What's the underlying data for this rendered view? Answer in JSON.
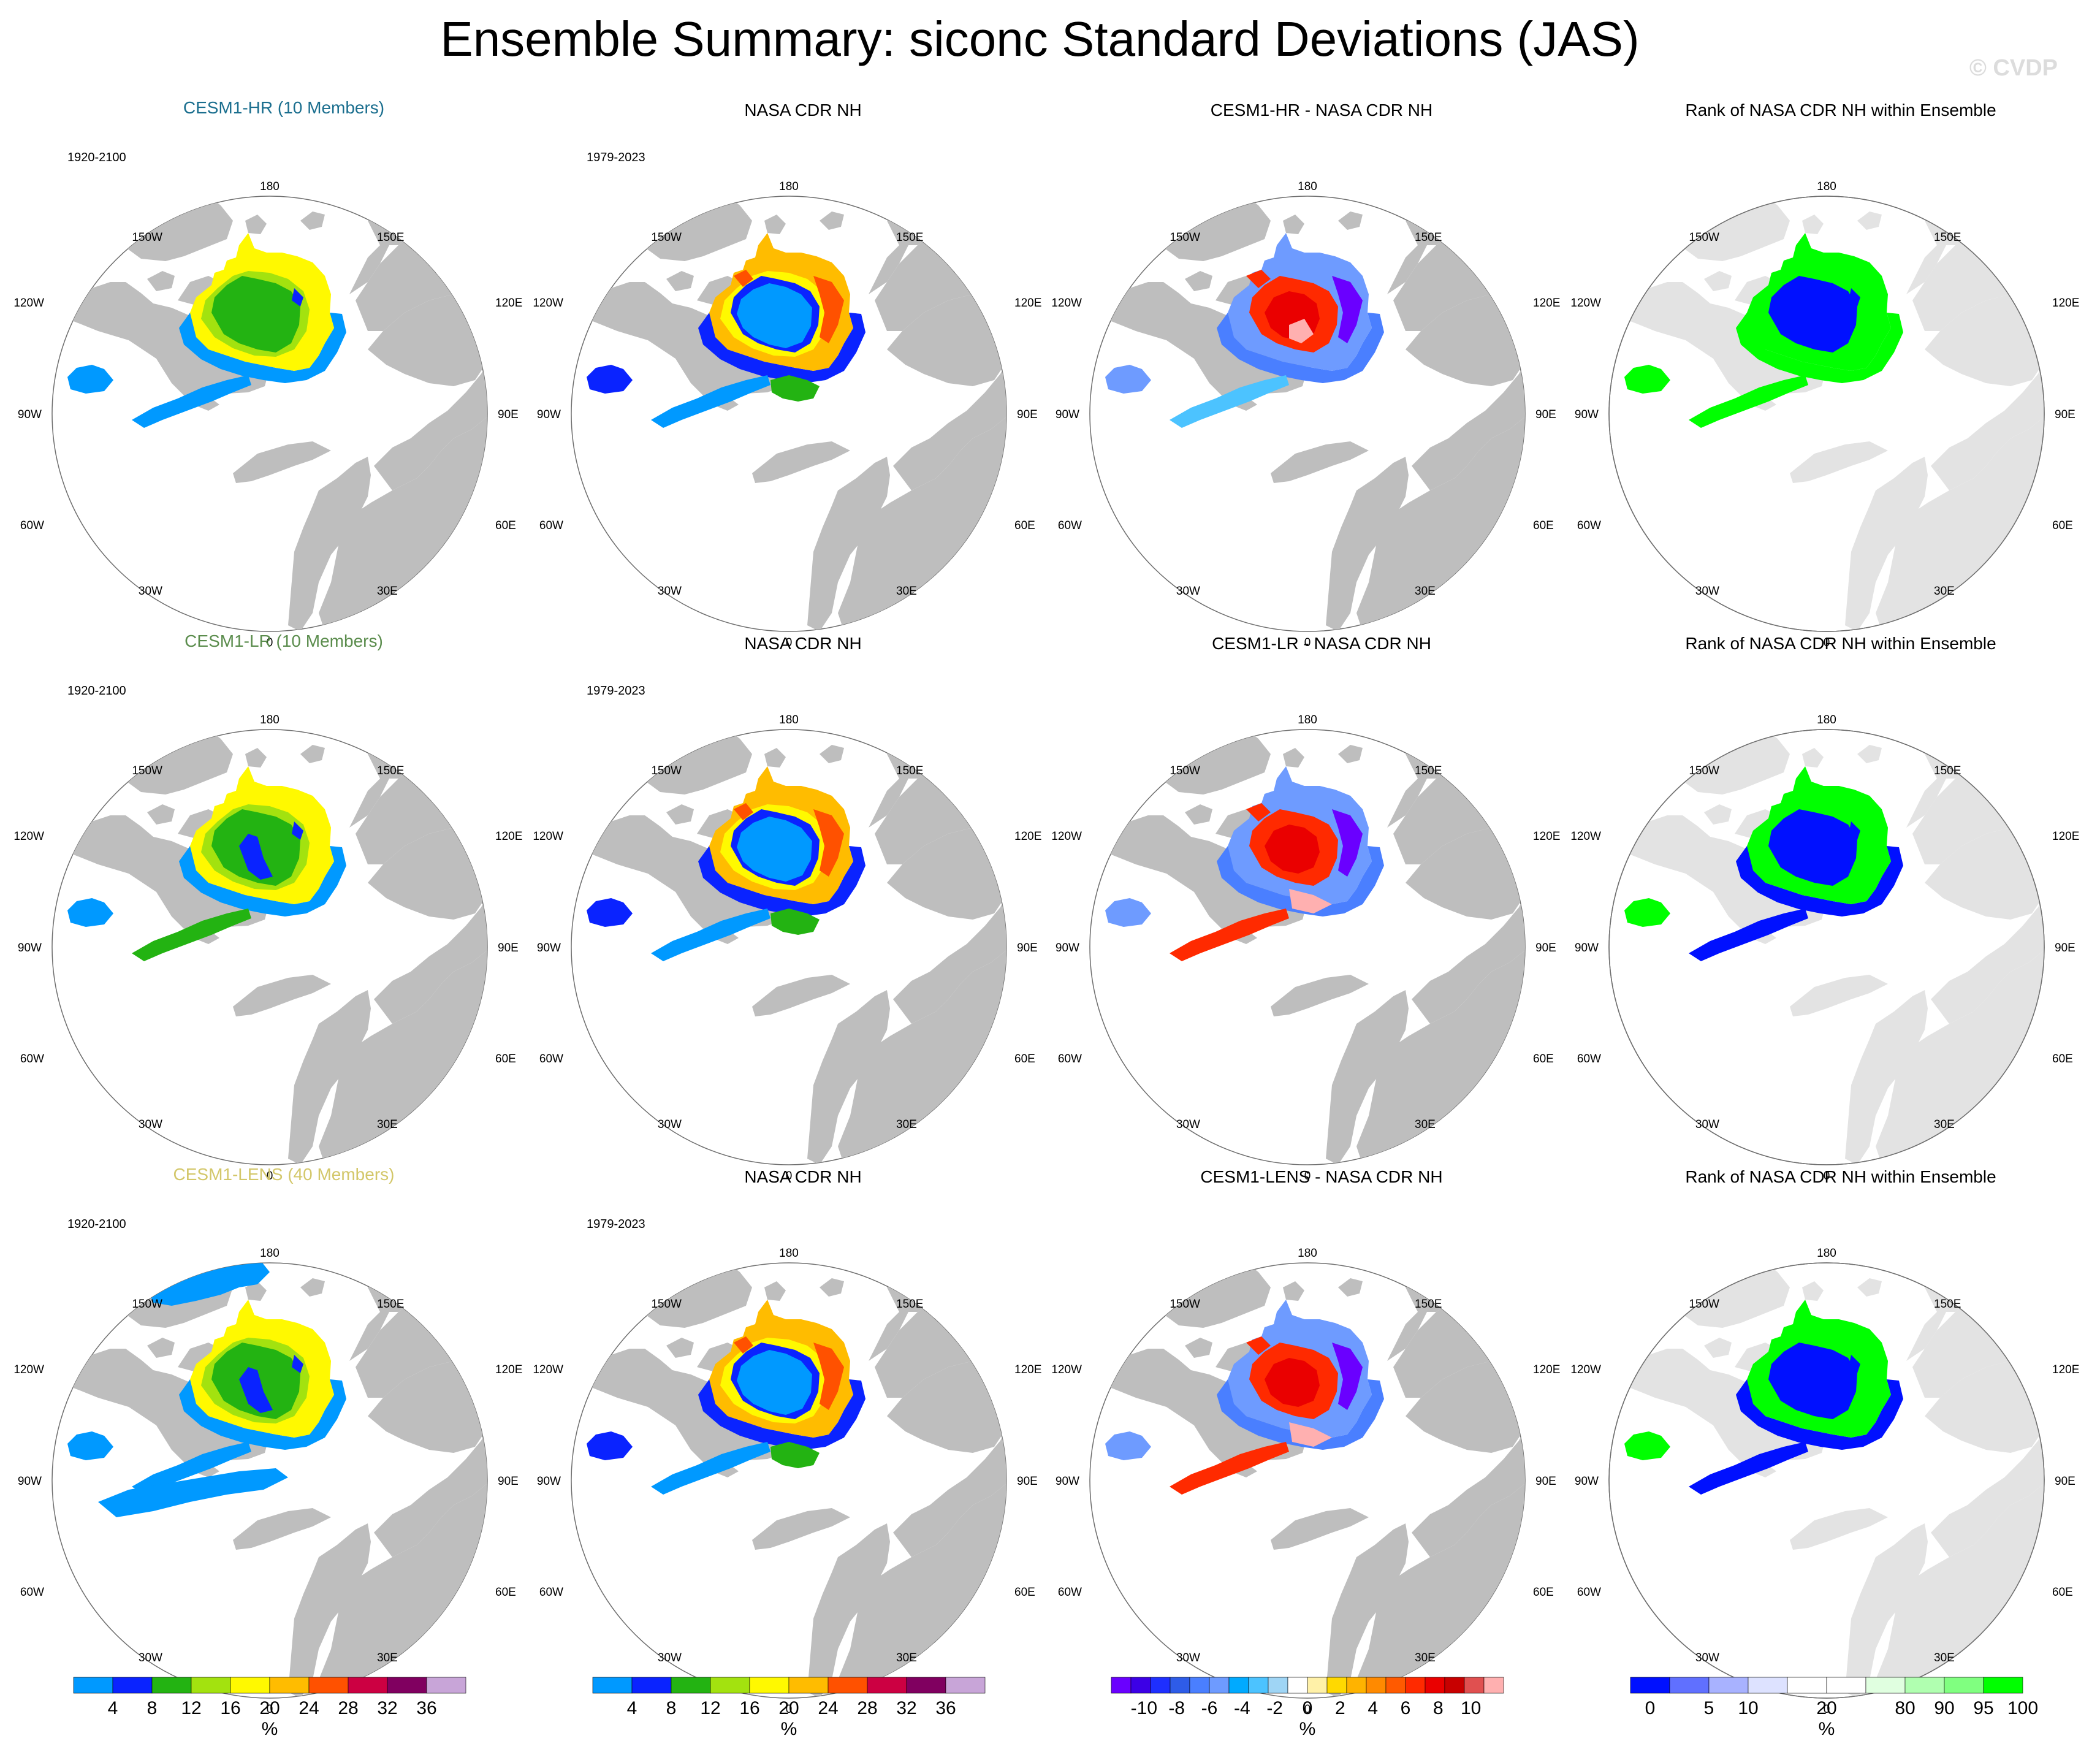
{
  "title": "Ensemble Summary: siconc Standard Deviations (JAS)",
  "watermark": "© CVDP",
  "map_labels": {
    "top": "180",
    "bottom": "0",
    "tl": "150W",
    "tr": "150E",
    "l1": "120W",
    "r1": "120E",
    "l2": "90W",
    "r2": "90E",
    "l3": "60W",
    "r3": "60E",
    "bl": "30W",
    "br": "30E"
  },
  "colors": {
    "ocean": "#ffffff",
    "land": "#bebebe",
    "land_rank": "#e3e3e3",
    "title_hr": "#1a6e8e",
    "title_lr": "#5a8c4c",
    "title_lens": "#d3c76a"
  },
  "rows": [
    {
      "ensemble": {
        "title": "CESM1-HR (10 Members)",
        "period": "1920-2100",
        "title_color": "#1a6e8e",
        "scheme": "hr"
      },
      "obs": {
        "title": "NASA CDR NH",
        "period": "1979-2023"
      },
      "diff": {
        "title": "CESM1-HR - NASA CDR NH"
      },
      "rank": {
        "title": "Rank of NASA CDR NH within Ensemble"
      }
    },
    {
      "ensemble": {
        "title": "CESM1-LR (10 Members)",
        "period": "1920-2100",
        "title_color": "#5a8c4c",
        "scheme": "lr"
      },
      "obs": {
        "title": "NASA CDR NH",
        "period": "1979-2023"
      },
      "diff": {
        "title": "CESM1-LR - NASA CDR NH"
      },
      "rank": {
        "title": "Rank of NASA CDR NH within Ensemble"
      }
    },
    {
      "ensemble": {
        "title": "CESM1-LENS (40 Members)",
        "period": "1920-2100",
        "title_color": "#d3c76a",
        "scheme": "lens"
      },
      "obs": {
        "title": "NASA CDR NH",
        "period": "1979-2023"
      },
      "diff": {
        "title": "CESM1-LENS - NASA CDR NH"
      },
      "rank": {
        "title": "Rank of NASA CDR NH within Ensemble"
      }
    }
  ],
  "colorbars": [
    {
      "unit": "%",
      "colors": [
        "#0099ff",
        "#0a23ff",
        "#23b312",
        "#a3e20f",
        "#fff900",
        "#ffbc00",
        "#ff5100",
        "#cc0042",
        "#800060",
        "#c8a5d8"
      ],
      "labels": [
        "4",
        "8",
        "12",
        "16",
        "20",
        "24",
        "28",
        "32",
        "36"
      ]
    },
    {
      "unit": "%",
      "colors": [
        "#0099ff",
        "#0a23ff",
        "#23b312",
        "#a3e20f",
        "#fff900",
        "#ffbc00",
        "#ff5100",
        "#cc0042",
        "#800060",
        "#c8a5d8"
      ],
      "labels": [
        "4",
        "8",
        "12",
        "16",
        "20",
        "24",
        "28",
        "32",
        "36"
      ]
    },
    {
      "unit": "%",
      "colors": [
        "#6a00ff",
        "#3c00e6",
        "#1e2fff",
        "#2e5ce8",
        "#4a7fff",
        "#6e9bff",
        "#00aaff",
        "#4cc3ff",
        "#9fd5f5",
        "#ffffff",
        "#fff1a8",
        "#ffd900",
        "#ffb300",
        "#ff8a00",
        "#ff5a00",
        "#ff2a00",
        "#ea0000",
        "#c80000",
        "#e05050",
        "#ffb0b0"
      ],
      "labels": [
        "-10",
        "-8",
        "-6",
        "-4",
        "-2",
        "0",
        "2",
        "4",
        "6",
        "8",
        "10"
      ]
    },
    {
      "unit": "%",
      "colors": [
        "#0010ff",
        "#6070ff",
        "#a8b2ff",
        "#dde2ff",
        "#ffffff",
        "#ffffff",
        "#e0ffe0",
        "#b0ffb0",
        "#80ff80",
        "#00ff00"
      ],
      "labels": [
        "0",
        "5",
        "10",
        "20",
        "80",
        "90",
        "95",
        "100"
      ]
    }
  ]
}
